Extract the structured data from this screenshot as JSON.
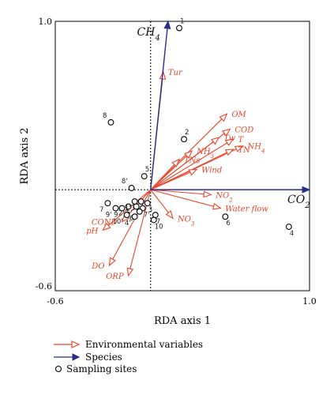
{
  "chart_data": {
    "type": "scatter",
    "subtype": "rda-biplot",
    "xlabel": "RDA axis 1",
    "ylabel": "RDA axis 2",
    "xlim": [
      -0.6,
      1.0
    ],
    "ylim": [
      -0.6,
      1.0
    ],
    "xticks": [
      "-0.6",
      "1.0"
    ],
    "yticks": [
      "1.0",
      "-0.6"
    ],
    "zero_lines": true,
    "colors": {
      "environmental": "#e8462e",
      "species": "#2b2b8a",
      "sites": "#000000"
    },
    "legend": {
      "position": "bottom-left",
      "entries": [
        {
          "label": "Environmental variables",
          "kind": "env"
        },
        {
          "label": "Species",
          "kind": "species"
        },
        {
          "label": "Sampling sites",
          "kind": "site"
        }
      ]
    },
    "species": [
      {
        "label": "CH4",
        "base": "CH",
        "sub": "4",
        "x": 0.11,
        "y": 1.0
      },
      {
        "label": "CO2",
        "base": "CO",
        "sub": "2",
        "x": 1.0,
        "y": 0.0
      }
    ],
    "environmental": [
      {
        "label": "Tur",
        "x": 0.08,
        "y": 0.7
      },
      {
        "label": "OM",
        "x": 0.48,
        "y": 0.45
      },
      {
        "label": "COD",
        "x": 0.5,
        "y": 0.36
      },
      {
        "label": "Tw",
        "x": 0.43,
        "y": 0.31
      },
      {
        "label": "T",
        "x": 0.52,
        "y": 0.3
      },
      {
        "label": "NH4",
        "base": "NH",
        "sub": "4",
        "x": 0.58,
        "y": 0.26
      },
      {
        "label": "TN",
        "x": 0.52,
        "y": 0.24
      },
      {
        "label": "NH3",
        "base": "NH",
        "sub": "3",
        "x": 0.26,
        "y": 0.23
      },
      {
        "label": "TNs",
        "x": 0.18,
        "y": 0.18
      },
      {
        "label": "Wind",
        "x": 0.29,
        "y": 0.12
      },
      {
        "label": "NO2",
        "base": "NO",
        "sub": "2",
        "x": 0.38,
        "y": -0.03
      },
      {
        "label": "Water flow",
        "x": 0.44,
        "y": -0.11
      },
      {
        "label": "NO3",
        "base": "NO",
        "sub": "3",
        "x": 0.14,
        "y": -0.17
      },
      {
        "label": "COND",
        "x": -0.18,
        "y": -0.19
      },
      {
        "label": "pH",
        "x": -0.3,
        "y": -0.24
      },
      {
        "label": "DO",
        "x": -0.26,
        "y": -0.45
      },
      {
        "label": "ORP",
        "x": -0.14,
        "y": -0.51
      }
    ],
    "sites": [
      {
        "label": "1",
        "x": 0.18,
        "y": 0.96
      },
      {
        "label": "8",
        "x": -0.25,
        "y": 0.4
      },
      {
        "label": "2",
        "x": 0.21,
        "y": 0.3
      },
      {
        "label": "5",
        "x": -0.04,
        "y": 0.08
      },
      {
        "label": "8'",
        "x": -0.12,
        "y": 0.01
      },
      {
        "label": "6",
        "x": 0.47,
        "y": -0.16
      },
      {
        "label": "4",
        "x": 0.87,
        "y": -0.22
      },
      {
        "label": "7",
        "x": -0.27,
        "y": -0.08
      },
      {
        "label": "9'",
        "x": -0.22,
        "y": -0.11
      },
      {
        "label": "9",
        "x": -0.18,
        "y": -0.11
      },
      {
        "label": "2'",
        "x": -0.14,
        "y": -0.1
      },
      {
        "label": "1'",
        "x": -0.1,
        "y": -0.07
      },
      {
        "label": "3'",
        "x": -0.06,
        "y": -0.07
      },
      {
        "label": "5'",
        "x": -0.09,
        "y": -0.1
      },
      {
        "label": "7'",
        "x": -0.05,
        "y": -0.11
      },
      {
        "label": "6'",
        "x": -0.07,
        "y": -0.13
      },
      {
        "label": "3",
        "x": -0.02,
        "y": -0.08
      },
      {
        "label": "7",
        "x": 0.03,
        "y": -0.15
      },
      {
        "label": "10'",
        "x": -0.15,
        "y": -0.15
      },
      {
        "label": "4'",
        "x": -0.1,
        "y": -0.16
      },
      {
        "label": "10",
        "x": 0.02,
        "y": -0.18
      }
    ]
  }
}
